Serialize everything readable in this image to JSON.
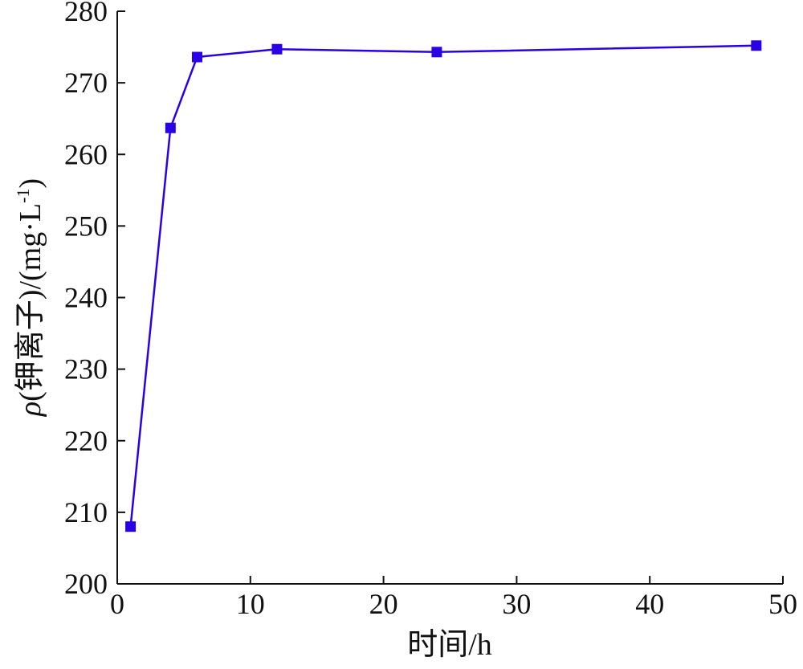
{
  "chart_data": {
    "type": "line",
    "title": "",
    "xlabel": "时间/h",
    "ylabel": {
      "symbol": "ρ",
      "label": "(钾离子)/(mg·L",
      "exponent": "-1",
      "close": ")"
    },
    "xlim": [
      0,
      50
    ],
    "ylim": [
      200,
      280
    ],
    "xticks": [
      0,
      10,
      20,
      30,
      40,
      50
    ],
    "yticks": [
      200,
      210,
      220,
      230,
      240,
      250,
      260,
      270,
      280
    ],
    "grid": false,
    "legend": "none",
    "series": [
      {
        "color": "#2a00e6",
        "marker": "square",
        "x": [
          1,
          4,
          6,
          12,
          24,
          48
        ],
        "y": [
          208.0,
          263.7,
          273.6,
          274.7,
          274.3,
          275.2
        ]
      }
    ]
  }
}
